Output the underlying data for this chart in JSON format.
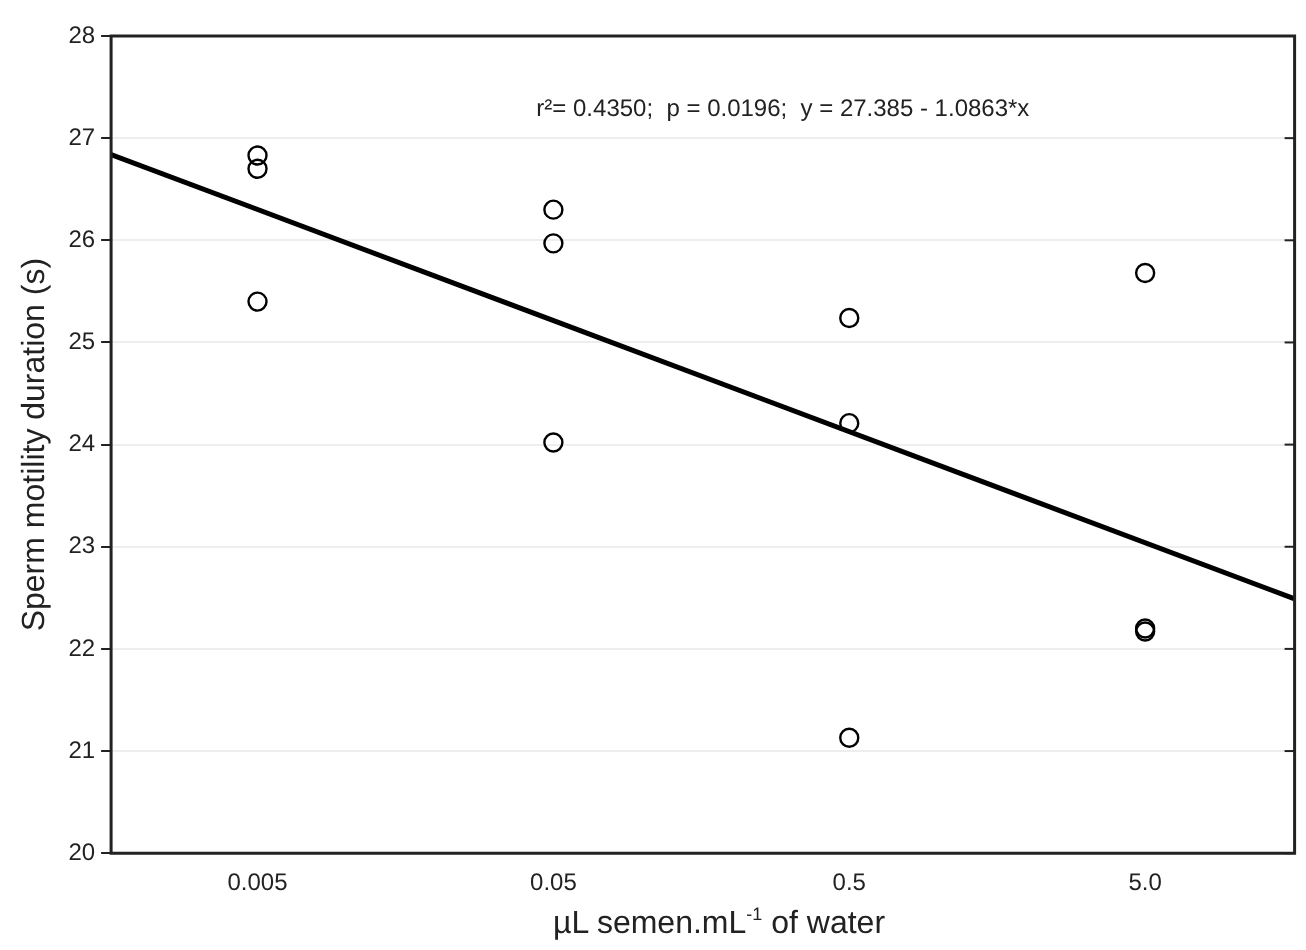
{
  "chart_data": {
    "type": "scatter",
    "xlabel": "µL semen.mL$^{-1}$ of water",
    "ylabel": "Sperm motility duration (s)",
    "annotations": [
      "r²= 0.4350;  p = 0.0196;  y = 27.385 - 1.0863*x"
    ],
    "log": "x",
    "xlim": [
      0.0016,
      16
    ],
    "xticks": [
      0.005,
      0.05,
      0.5,
      {
        "value": 5,
        "label": "5.0"
      }
    ],
    "ylim": [
      20,
      28
    ],
    "yticks": [
      20,
      21,
      22,
      23,
      24,
      25,
      26,
      27,
      28
    ],
    "grid": "y",
    "legend": false,
    "series": [
      {
        "marker": "circle",
        "color": "#000000",
        "x": [
          0.005,
          0.005,
          0.005,
          0.05,
          0.05,
          0.05,
          0.5,
          0.5,
          0.5,
          5,
          5,
          5
        ],
        "values": [
          26.83,
          26.7,
          25.4,
          26.3,
          25.97,
          24.02,
          25.24,
          24.21,
          21.13,
          25.68,
          22.2,
          22.17
        ]
      },
      {
        "type": "line",
        "marker": "none",
        "color": "#000000",
        "x": [
          0.0016,
          16
        ],
        "values": [
          26.84,
          22.49
        ]
      }
    ]
  }
}
